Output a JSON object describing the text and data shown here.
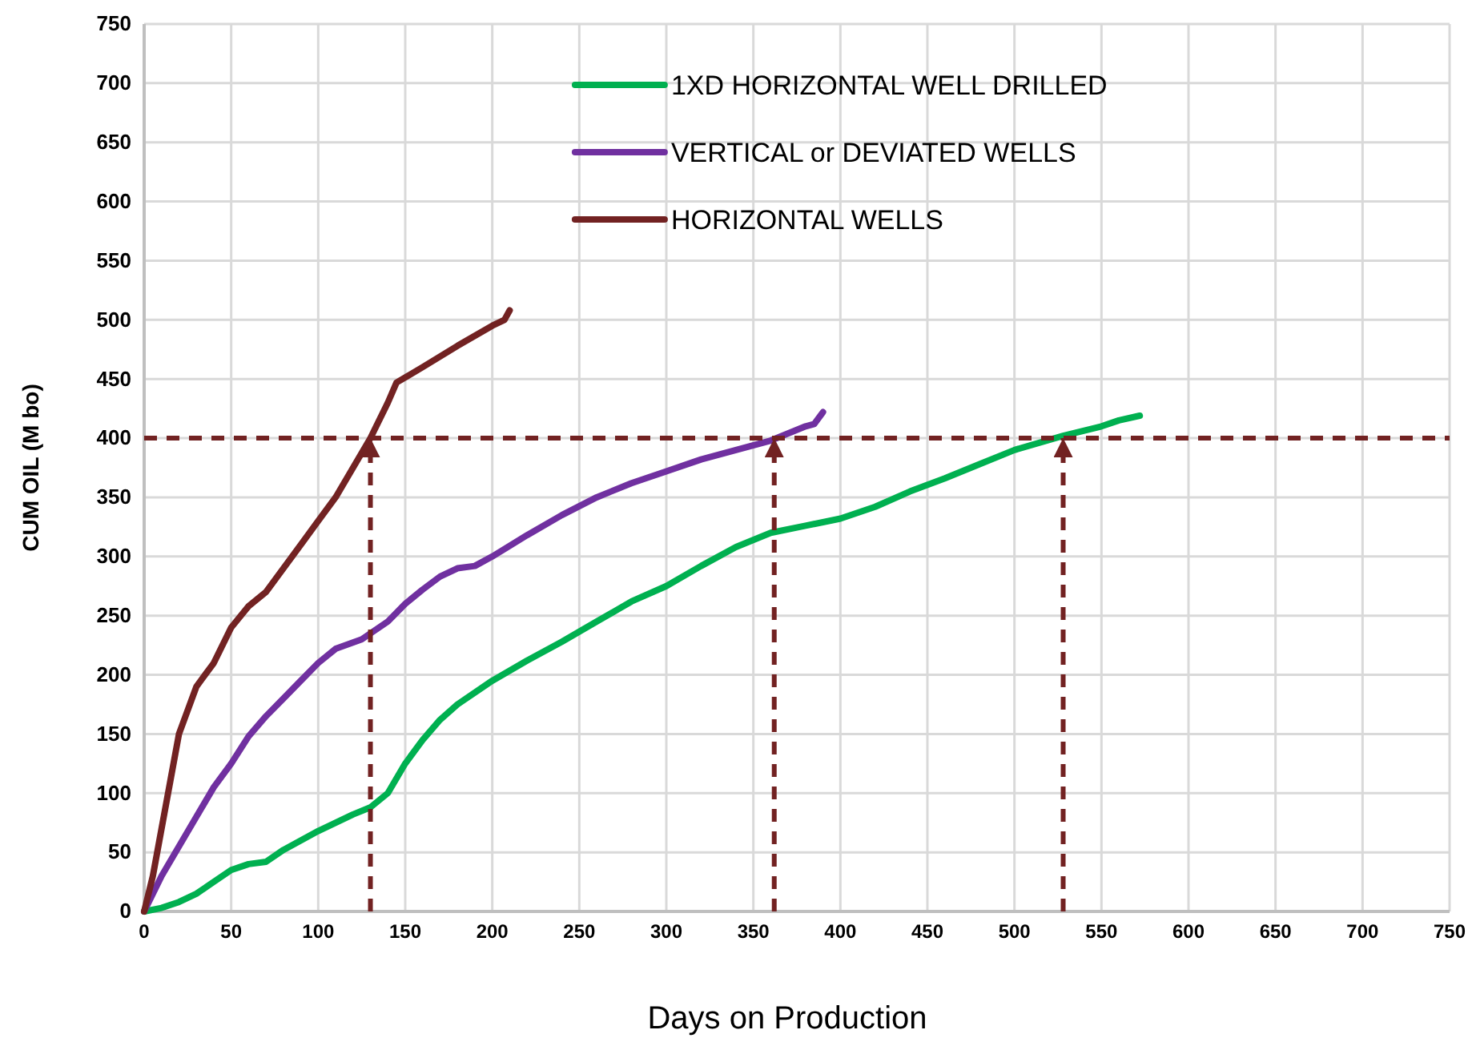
{
  "chart_data": {
    "type": "line",
    "xlabel": "Days on Production",
    "ylabel": "CUM OIL (M bo)",
    "xlim": [
      0,
      750
    ],
    "ylim": [
      0,
      750
    ],
    "xticks": [
      0,
      50,
      100,
      150,
      200,
      250,
      300,
      350,
      400,
      450,
      500,
      550,
      600,
      650,
      700,
      750
    ],
    "yticks": [
      0,
      50,
      100,
      150,
      200,
      250,
      300,
      350,
      400,
      450,
      500,
      550,
      600,
      650,
      700,
      750
    ],
    "grid": true,
    "legend": "top",
    "line_style": "solid",
    "marker": "none",
    "series": [
      {
        "name": "1XD HORIZONTAL WELL DRILLED",
        "color": "#00b050",
        "x": [
          0,
          10,
          20,
          30,
          40,
          50,
          60,
          70,
          80,
          100,
          120,
          130,
          140,
          150,
          160,
          170,
          180,
          200,
          220,
          240,
          260,
          280,
          300,
          320,
          340,
          360,
          380,
          400,
          420,
          440,
          460,
          480,
          500,
          528,
          550,
          560,
          572
        ],
        "values": [
          0,
          3,
          8,
          15,
          25,
          35,
          40,
          42,
          52,
          68,
          82,
          88,
          100,
          125,
          145,
          162,
          175,
          195,
          212,
          228,
          245,
          262,
          275,
          292,
          308,
          320,
          326,
          332,
          342,
          355,
          366,
          378,
          390,
          402,
          410,
          415,
          419
        ]
      },
      {
        "name": "VERTICAL or DEVIATED WELLS",
        "color": "#7030a0",
        "x": [
          0,
          10,
          20,
          30,
          40,
          50,
          60,
          70,
          80,
          90,
          100,
          110,
          125,
          140,
          150,
          160,
          170,
          180,
          190,
          200,
          220,
          240,
          260,
          280,
          300,
          320,
          340,
          360,
          380,
          385,
          390
        ],
        "values": [
          0,
          30,
          55,
          80,
          105,
          125,
          148,
          165,
          180,
          195,
          210,
          222,
          230,
          245,
          260,
          272,
          283,
          290,
          292,
          300,
          318,
          335,
          350,
          362,
          372,
          382,
          390,
          398,
          410,
          412,
          422
        ]
      },
      {
        "name": "HORIZONTAL WELLS",
        "color": "#722222",
        "x": [
          0,
          5,
          10,
          15,
          20,
          30,
          40,
          50,
          60,
          70,
          80,
          90,
          100,
          110,
          120,
          130,
          140,
          145,
          160,
          180,
          200,
          207,
          210
        ],
        "values": [
          0,
          30,
          70,
          110,
          150,
          190,
          210,
          240,
          258,
          270,
          290,
          310,
          330,
          350,
          375,
          400,
          430,
          447,
          460,
          478,
          495,
          500,
          508
        ]
      }
    ],
    "ref_lines": [
      {
        "axis": "y",
        "value": 400,
        "color": "#722222",
        "line_style": "dashed"
      },
      {
        "axis": "x",
        "value": 130,
        "color": "#722222",
        "line_style": "dashed"
      },
      {
        "axis": "x",
        "value": 362,
        "color": "#722222",
        "line_style": "dashed"
      },
      {
        "axis": "x",
        "value": 528,
        "color": "#722222",
        "line_style": "dashed"
      }
    ]
  }
}
